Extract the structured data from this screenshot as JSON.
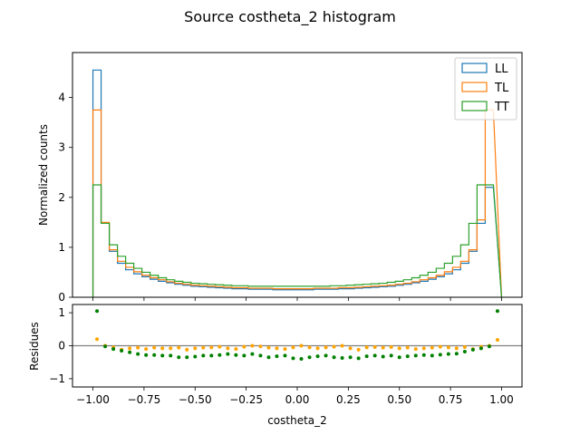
{
  "chart_data": [
    {
      "type": "line",
      "title": "Source costheta_2 histogram",
      "ylabel": "Normalized counts",
      "xlim": [
        -1.1,
        1.1
      ],
      "ylim": [
        0,
        4.9
      ],
      "yticks": [
        0,
        1,
        2,
        3,
        4
      ],
      "legend_position": "top-right",
      "bin_edges": [
        -0.96,
        -0.92,
        -0.88,
        -0.84,
        -0.8,
        -0.76,
        -0.72,
        -0.68,
        -0.64,
        -0.6,
        -0.56,
        -0.52,
        -0.48,
        -0.44,
        -0.4,
        -0.36,
        -0.32,
        -0.28,
        -0.24,
        -0.2,
        -0.16,
        -0.12,
        -0.08,
        -0.04,
        0.0,
        0.04,
        0.08,
        0.12,
        0.16,
        0.2,
        0.24,
        0.28,
        0.32,
        0.36,
        0.4,
        0.44,
        0.48,
        0.52,
        0.56,
        0.6,
        0.64,
        0.68,
        0.72,
        0.76,
        0.8,
        0.84,
        0.88,
        0.92,
        0.96
      ],
      "histogram_range": [
        -1.0,
        1.0
      ],
      "series": [
        {
          "name": "LL",
          "color": "#1f77b4",
          "values": [
            4.55,
            1.48,
            0.92,
            0.68,
            0.55,
            0.47,
            0.41,
            0.36,
            0.32,
            0.29,
            0.26,
            0.24,
            0.22,
            0.21,
            0.2,
            0.19,
            0.18,
            0.17,
            0.17,
            0.16,
            0.16,
            0.16,
            0.15,
            0.15,
            0.15,
            0.15,
            0.15,
            0.16,
            0.16,
            0.16,
            0.17,
            0.17,
            0.18,
            0.19,
            0.2,
            0.21,
            0.22,
            0.24,
            0.26,
            0.29,
            0.32,
            0.36,
            0.41,
            0.47,
            0.55,
            0.68,
            0.92,
            1.48,
            2.2
          ]
        },
        {
          "name": "TL",
          "color": "#ff7f0e",
          "values": [
            3.75,
            1.5,
            0.95,
            0.72,
            0.6,
            0.51,
            0.44,
            0.39,
            0.35,
            0.31,
            0.28,
            0.26,
            0.24,
            0.23,
            0.22,
            0.21,
            0.2,
            0.19,
            0.19,
            0.18,
            0.18,
            0.18,
            0.17,
            0.17,
            0.17,
            0.17,
            0.17,
            0.18,
            0.18,
            0.18,
            0.19,
            0.19,
            0.2,
            0.21,
            0.22,
            0.23,
            0.24,
            0.26,
            0.28,
            0.31,
            0.35,
            0.39,
            0.44,
            0.51,
            0.6,
            0.72,
            0.95,
            1.55,
            3.75
          ]
        },
        {
          "name": "TT",
          "color": "#2ca02c",
          "values": [
            2.25,
            1.48,
            1.05,
            0.82,
            0.68,
            0.58,
            0.5,
            0.44,
            0.39,
            0.35,
            0.32,
            0.3,
            0.28,
            0.27,
            0.26,
            0.25,
            0.24,
            0.23,
            0.23,
            0.22,
            0.22,
            0.22,
            0.22,
            0.22,
            0.22,
            0.22,
            0.22,
            0.22,
            0.22,
            0.23,
            0.23,
            0.24,
            0.25,
            0.26,
            0.27,
            0.28,
            0.3,
            0.32,
            0.35,
            0.39,
            0.44,
            0.5,
            0.58,
            0.68,
            0.82,
            1.05,
            1.48,
            2.25,
            2.25
          ]
        }
      ]
    },
    {
      "type": "scatter",
      "xlabel": "costheta_2",
      "ylabel": "Residues",
      "xlim": [
        -1.1,
        1.1
      ],
      "ylim": [
        -1.25,
        1.25
      ],
      "yticks": [
        -1,
        0,
        1
      ],
      "xticks": [
        -1.0,
        -0.75,
        -0.5,
        -0.25,
        0.0,
        0.25,
        0.5,
        0.75,
        1.0
      ],
      "xtick_labels": [
        "−1.00",
        "−0.75",
        "−0.50",
        "−0.25",
        "0.00",
        "0.25",
        "0.50",
        "0.75",
        "1.00"
      ],
      "reference_line": 0,
      "x": [
        -0.98,
        -0.94,
        -0.9,
        -0.86,
        -0.82,
        -0.78,
        -0.74,
        -0.7,
        -0.66,
        -0.62,
        -0.58,
        -0.54,
        -0.5,
        -0.46,
        -0.42,
        -0.38,
        -0.34,
        -0.3,
        -0.26,
        -0.22,
        -0.18,
        -0.14,
        -0.1,
        -0.06,
        -0.02,
        0.02,
        0.06,
        0.1,
        0.14,
        0.18,
        0.22,
        0.26,
        0.3,
        0.34,
        0.38,
        0.42,
        0.46,
        0.5,
        0.54,
        0.58,
        0.62,
        0.66,
        0.7,
        0.74,
        0.78,
        0.82,
        0.86,
        0.9,
        0.94,
        0.98
      ],
      "series": [
        {
          "color": "#ffa500",
          "values": [
            0.2,
            0.0,
            -0.05,
            -0.12,
            -0.08,
            -0.06,
            -0.1,
            -0.06,
            -0.08,
            -0.08,
            -0.06,
            -0.12,
            -0.08,
            -0.06,
            -0.05,
            -0.03,
            -0.08,
            -0.1,
            -0.03,
            0.0,
            -0.02,
            -0.06,
            -0.08,
            -0.1,
            -0.05,
            0.0,
            -0.05,
            -0.08,
            -0.05,
            -0.03,
            0.0,
            -0.08,
            -0.12,
            -0.05,
            -0.04,
            -0.06,
            -0.04,
            -0.08,
            -0.06,
            -0.1,
            -0.08,
            -0.06,
            -0.03,
            -0.05,
            -0.08,
            -0.04,
            -0.1,
            -0.03,
            0.0,
            0.18
          ]
        },
        {
          "color": "#008000",
          "values": [
            1.05,
            -0.02,
            -0.1,
            -0.15,
            -0.2,
            -0.25,
            -0.28,
            -0.28,
            -0.3,
            -0.3,
            -0.35,
            -0.35,
            -0.33,
            -0.3,
            -0.3,
            -0.28,
            -0.25,
            -0.28,
            -0.3,
            -0.25,
            -0.3,
            -0.35,
            -0.32,
            -0.3,
            -0.38,
            -0.4,
            -0.35,
            -0.32,
            -0.3,
            -0.35,
            -0.37,
            -0.35,
            -0.38,
            -0.32,
            -0.3,
            -0.33,
            -0.3,
            -0.35,
            -0.32,
            -0.3,
            -0.28,
            -0.3,
            -0.27,
            -0.25,
            -0.24,
            -0.18,
            -0.12,
            -0.08,
            -0.02,
            1.05
          ]
        }
      ]
    }
  ]
}
